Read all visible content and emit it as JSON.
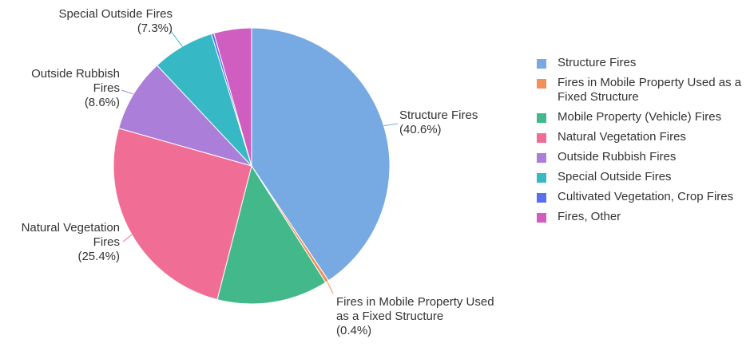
{
  "chart_data": {
    "type": "pie",
    "title": "",
    "slices": [
      {
        "label": "Structure Fires",
        "value": 40.6,
        "color": "#77a9e2",
        "callout": [
          "Structure Fires",
          "(40.6%)"
        ]
      },
      {
        "label": "Fires in Mobile Property Used as a Fixed Structure",
        "value": 0.4,
        "color": "#f0905a",
        "callout": [
          "Fires in Mobile Property Used",
          "as a Fixed Structure",
          "(0.4%)"
        ]
      },
      {
        "label": "Mobile Property (Vehicle) Fires",
        "value": 13.0,
        "color": "#43b98b",
        "callout": []
      },
      {
        "label": "Natural Vegetation Fires",
        "value": 25.4,
        "color": "#f06e96",
        "callout": [
          "Natural Vegetation",
          "Fires",
          "(25.4%)"
        ]
      },
      {
        "label": "Outside Rubbish Fires",
        "value": 8.6,
        "color": "#aa7ed9",
        "callout": [
          "Outside Rubbish",
          "Fires",
          "(8.6%)"
        ]
      },
      {
        "label": "Special Outside Fires",
        "value": 7.3,
        "color": "#37b8c5",
        "callout": [
          "Special Outside Fires",
          "(7.3%)"
        ]
      },
      {
        "label": "Cultivated Vegetation, Crop Fires",
        "value": 0.3,
        "color": "#5a6ff0",
        "callout": []
      },
      {
        "label": "Fires, Other",
        "value": 4.4,
        "color": "#d05dc0",
        "callout": []
      }
    ],
    "legend": {
      "position": "right",
      "items": [
        "Structure Fires",
        "Fires in Mobile Property Used as a Fixed Structure",
        "Mobile Property (Vehicle) Fires",
        "Natural Vegetation Fires",
        "Outside Rubbish Fires",
        "Special Outside Fires",
        "Cultivated Vegetation, Crop Fires",
        "Fires, Other"
      ]
    }
  }
}
